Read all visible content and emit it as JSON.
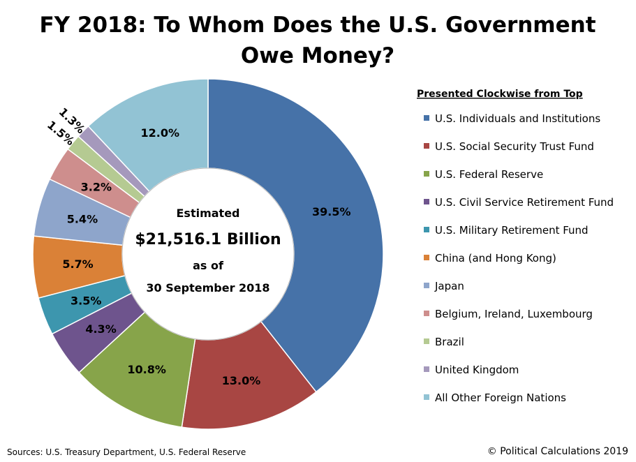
{
  "chart_data": {
    "type": "pie",
    "variant": "donut",
    "title": "FY 2018: To Whom Does the U.S. Government Owe Money?",
    "title_lines": [
      "FY 2018: To Whom Does the U.S. Government",
      "Owe Money?"
    ],
    "center_text": [
      "Estimated",
      "$21,516.1 Billion",
      "as of",
      "30 September 2018"
    ],
    "legend_title": "Presented Clockwise from Top",
    "legend_position": "right",
    "unit": "%",
    "slices": [
      {
        "name": "U.S. Individuals and Institutions",
        "value": 39.5,
        "label": "39.5%",
        "color": "#4672A8"
      },
      {
        "name": "U.S. Social Security Trust Fund",
        "value": 13.0,
        "label": "13.0%",
        "color": "#A84643"
      },
      {
        "name": "U.S. Federal Reserve",
        "value": 10.8,
        "label": "10.8%",
        "color": "#87A44A"
      },
      {
        "name": "U.S. Civil Service Retirement Fund",
        "value": 4.3,
        "label": "4.3%",
        "color": "#6E548D"
      },
      {
        "name": "U.S. Military Retirement Fund",
        "value": 3.5,
        "label": "3.5%",
        "color": "#3D96AE"
      },
      {
        "name": "China (and Hong Kong)",
        "value": 5.7,
        "label": "5.7%",
        "color": "#DA8137"
      },
      {
        "name": "Japan",
        "value": 5.4,
        "label": "5.4%",
        "color": "#8EA5CB"
      },
      {
        "name": "Belgium, Ireland, Luxembourg",
        "value": 3.2,
        "label": "3.2%",
        "color": "#CE8E8D"
      },
      {
        "name": "Brazil",
        "value": 1.5,
        "label": "1.5%",
        "color": "#B5CA92"
      },
      {
        "name": "United Kingdom",
        "value": 1.3,
        "label": "1.3%",
        "color": "#A599BC"
      },
      {
        "name": "All Other Foreign Nations",
        "value": 12.0,
        "label": "12.0%",
        "color": "#92C3D4"
      }
    ]
  },
  "footer": {
    "sources": "Sources: U.S. Treasury Department, U.S. Federal Reserve",
    "copyright": "© Political Calculations 2019"
  }
}
